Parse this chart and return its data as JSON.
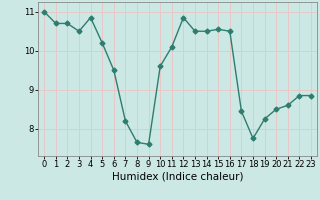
{
  "x": [
    0,
    1,
    2,
    3,
    4,
    5,
    6,
    7,
    8,
    9,
    10,
    11,
    12,
    13,
    14,
    15,
    16,
    17,
    18,
    19,
    20,
    21,
    22,
    23
  ],
  "y": [
    11.0,
    10.7,
    10.7,
    10.5,
    10.85,
    10.2,
    9.5,
    8.2,
    7.65,
    7.6,
    9.6,
    10.1,
    10.85,
    10.5,
    10.5,
    10.55,
    10.5,
    8.45,
    7.75,
    8.25,
    8.5,
    8.6,
    8.85,
    8.85
  ],
  "line_color": "#2e7d6e",
  "marker": "D",
  "markersize": 2.5,
  "linewidth": 1.0,
  "bg_color": "#cce8e4",
  "grid_color": "#e8c8c8",
  "xlabel": "Humidex (Indice chaleur)",
  "ylim": [
    7.3,
    11.25
  ],
  "xlim": [
    -0.5,
    23.5
  ],
  "yticks": [
    8,
    9,
    10,
    11
  ],
  "xticks": [
    0,
    1,
    2,
    3,
    4,
    5,
    6,
    7,
    8,
    9,
    10,
    11,
    12,
    13,
    14,
    15,
    16,
    17,
    18,
    19,
    20,
    21,
    22,
    23
  ],
  "tick_fontsize": 6,
  "xlabel_fontsize": 7.5
}
